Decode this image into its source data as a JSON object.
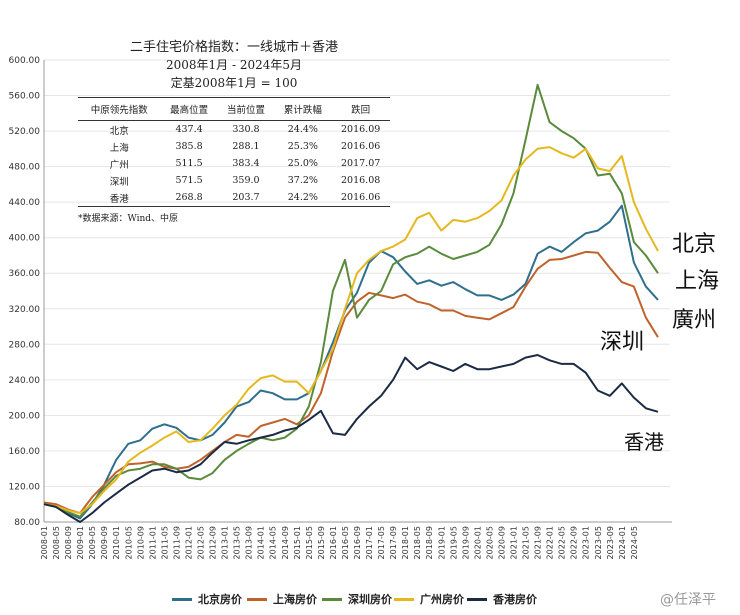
{
  "chart_data": {
    "type": "line",
    "ylim": [
      80,
      600
    ],
    "yticks": [
      "80.00",
      "120.00",
      "160.00",
      "200.00",
      "240.00",
      "280.00",
      "320.00",
      "360.00",
      "400.00",
      "440.00",
      "480.00",
      "520.00",
      "560.00",
      "600.00"
    ],
    "xticks": [
      "2008-01",
      "2008-05",
      "2008-09",
      "2009-01",
      "2009-05",
      "2009-09",
      "2010-01",
      "2010-05",
      "2010-09",
      "2011-01",
      "2011-05",
      "2011-09",
      "2012-01",
      "2012-05",
      "2012-09",
      "2013-01",
      "2013-05",
      "2013-09",
      "2014-01",
      "2014-05",
      "2014-09",
      "2015-01",
      "2015-05",
      "2015-09",
      "2016-01",
      "2016-05",
      "2016-09",
      "2017-01",
      "2017-05",
      "2017-09",
      "2018-01",
      "2018-05",
      "2018-09",
      "2019-01",
      "2019-05",
      "2019-09",
      "2020-01",
      "2020-05",
      "2020-09",
      "2021-01",
      "2021-05",
      "2021-09",
      "2022-01",
      "2022-05",
      "2022-09",
      "2023-01",
      "2023-05",
      "2023-09",
      "2024-01",
      "2024-05"
    ],
    "series": [
      {
        "name": "北京房价",
        "color": "#2e6f8e",
        "points": [
          [
            0,
            100
          ],
          [
            4,
            98
          ],
          [
            8,
            90
          ],
          [
            12,
            84
          ],
          [
            16,
            100
          ],
          [
            20,
            122
          ],
          [
            24,
            150
          ],
          [
            28,
            168
          ],
          [
            32,
            172
          ],
          [
            36,
            185
          ],
          [
            40,
            190
          ],
          [
            44,
            186
          ],
          [
            48,
            175
          ],
          [
            52,
            172
          ],
          [
            56,
            178
          ],
          [
            60,
            192
          ],
          [
            64,
            210
          ],
          [
            68,
            215
          ],
          [
            72,
            228
          ],
          [
            76,
            225
          ],
          [
            80,
            218
          ],
          [
            84,
            218
          ],
          [
            88,
            225
          ],
          [
            92,
            250
          ],
          [
            96,
            282
          ],
          [
            100,
            318
          ],
          [
            104,
            338
          ],
          [
            108,
            372
          ],
          [
            112,
            385
          ],
          [
            116,
            378
          ],
          [
            120,
            362
          ],
          [
            124,
            348
          ],
          [
            128,
            352
          ],
          [
            132,
            346
          ],
          [
            136,
            350
          ],
          [
            140,
            342
          ],
          [
            144,
            335
          ],
          [
            148,
            335
          ],
          [
            152,
            330
          ],
          [
            156,
            336
          ],
          [
            160,
            348
          ],
          [
            164,
            382
          ],
          [
            168,
            390
          ],
          [
            172,
            384
          ],
          [
            176,
            395
          ],
          [
            180,
            405
          ],
          [
            184,
            408
          ],
          [
            188,
            418
          ],
          [
            192,
            436
          ],
          [
            196,
            372
          ],
          [
            200,
            345
          ],
          [
            204,
            330
          ]
        ]
      },
      {
        "name": "上海房价",
        "color": "#c0622b",
        "points": [
          [
            0,
            102
          ],
          [
            4,
            100
          ],
          [
            8,
            94
          ],
          [
            12,
            90
          ],
          [
            16,
            108
          ],
          [
            20,
            122
          ],
          [
            24,
            136
          ],
          [
            28,
            145
          ],
          [
            32,
            146
          ],
          [
            36,
            148
          ],
          [
            40,
            142
          ],
          [
            44,
            140
          ],
          [
            48,
            142
          ],
          [
            52,
            150
          ],
          [
            56,
            160
          ],
          [
            60,
            170
          ],
          [
            64,
            178
          ],
          [
            68,
            176
          ],
          [
            72,
            188
          ],
          [
            76,
            192
          ],
          [
            80,
            196
          ],
          [
            84,
            190
          ],
          [
            88,
            200
          ],
          [
            92,
            225
          ],
          [
            96,
            272
          ],
          [
            100,
            310
          ],
          [
            104,
            328
          ],
          [
            108,
            338
          ],
          [
            112,
            335
          ],
          [
            116,
            332
          ],
          [
            120,
            336
          ],
          [
            124,
            328
          ],
          [
            128,
            325
          ],
          [
            132,
            318
          ],
          [
            136,
            318
          ],
          [
            140,
            312
          ],
          [
            144,
            310
          ],
          [
            148,
            308
          ],
          [
            152,
            315
          ],
          [
            156,
            322
          ],
          [
            160,
            345
          ],
          [
            164,
            365
          ],
          [
            168,
            375
          ],
          [
            172,
            376
          ],
          [
            176,
            380
          ],
          [
            180,
            384
          ],
          [
            184,
            383
          ],
          [
            188,
            366
          ],
          [
            192,
            350
          ],
          [
            196,
            345
          ],
          [
            200,
            310
          ],
          [
            204,
            288
          ]
        ]
      },
      {
        "name": "深圳房价",
        "color": "#5a8a3c",
        "points": [
          [
            0,
            100
          ],
          [
            4,
            97
          ],
          [
            8,
            91
          ],
          [
            12,
            86
          ],
          [
            16,
            102
          ],
          [
            20,
            118
          ],
          [
            24,
            132
          ],
          [
            28,
            138
          ],
          [
            32,
            140
          ],
          [
            36,
            145
          ],
          [
            40,
            145
          ],
          [
            44,
            140
          ],
          [
            48,
            130
          ],
          [
            52,
            128
          ],
          [
            56,
            135
          ],
          [
            60,
            150
          ],
          [
            64,
            160
          ],
          [
            68,
            168
          ],
          [
            72,
            175
          ],
          [
            76,
            172
          ],
          [
            80,
            175
          ],
          [
            84,
            185
          ],
          [
            88,
            210
          ],
          [
            92,
            260
          ],
          [
            96,
            340
          ],
          [
            100,
            375
          ],
          [
            104,
            310
          ],
          [
            108,
            330
          ],
          [
            112,
            340
          ],
          [
            116,
            370
          ],
          [
            120,
            378
          ],
          [
            124,
            382
          ],
          [
            128,
            390
          ],
          [
            132,
            382
          ],
          [
            136,
            376
          ],
          [
            140,
            380
          ],
          [
            144,
            384
          ],
          [
            148,
            392
          ],
          [
            152,
            415
          ],
          [
            156,
            450
          ],
          [
            160,
            510
          ],
          [
            164,
            572
          ],
          [
            168,
            530
          ],
          [
            172,
            520
          ],
          [
            176,
            512
          ],
          [
            180,
            500
          ],
          [
            184,
            470
          ],
          [
            188,
            472
          ],
          [
            192,
            450
          ],
          [
            196,
            395
          ],
          [
            200,
            380
          ],
          [
            204,
            360
          ]
        ]
      },
      {
        "name": "广州房价",
        "color": "#e6b820",
        "points": [
          [
            0,
            100
          ],
          [
            4,
            98
          ],
          [
            8,
            93
          ],
          [
            12,
            90
          ],
          [
            16,
            100
          ],
          [
            20,
            115
          ],
          [
            24,
            128
          ],
          [
            28,
            148
          ],
          [
            32,
            158
          ],
          [
            36,
            166
          ],
          [
            40,
            175
          ],
          [
            44,
            182
          ],
          [
            48,
            170
          ],
          [
            52,
            172
          ],
          [
            56,
            185
          ],
          [
            60,
            200
          ],
          [
            64,
            212
          ],
          [
            68,
            230
          ],
          [
            72,
            242
          ],
          [
            76,
            245
          ],
          [
            80,
            238
          ],
          [
            84,
            238
          ],
          [
            88,
            225
          ],
          [
            92,
            250
          ],
          [
            96,
            275
          ],
          [
            100,
            320
          ],
          [
            104,
            360
          ],
          [
            108,
            375
          ],
          [
            112,
            385
          ],
          [
            116,
            390
          ],
          [
            120,
            398
          ],
          [
            124,
            422
          ],
          [
            128,
            428
          ],
          [
            132,
            408
          ],
          [
            136,
            420
          ],
          [
            140,
            418
          ],
          [
            144,
            422
          ],
          [
            148,
            430
          ],
          [
            152,
            442
          ],
          [
            156,
            470
          ],
          [
            160,
            488
          ],
          [
            164,
            500
          ],
          [
            168,
            502
          ],
          [
            172,
            495
          ],
          [
            176,
            490
          ],
          [
            180,
            500
          ],
          [
            184,
            478
          ],
          [
            188,
            475
          ],
          [
            192,
            492
          ],
          [
            196,
            440
          ],
          [
            200,
            410
          ],
          [
            204,
            385
          ]
        ]
      },
      {
        "name": "香港房价",
        "color": "#1c2a44",
        "points": [
          [
            0,
            100
          ],
          [
            4,
            97
          ],
          [
            8,
            88
          ],
          [
            12,
            80
          ],
          [
            16,
            90
          ],
          [
            20,
            102
          ],
          [
            24,
            112
          ],
          [
            28,
            122
          ],
          [
            32,
            130
          ],
          [
            36,
            138
          ],
          [
            40,
            140
          ],
          [
            44,
            136
          ],
          [
            48,
            138
          ],
          [
            52,
            145
          ],
          [
            56,
            158
          ],
          [
            60,
            170
          ],
          [
            64,
            168
          ],
          [
            68,
            172
          ],
          [
            72,
            175
          ],
          [
            76,
            178
          ],
          [
            80,
            183
          ],
          [
            84,
            186
          ],
          [
            88,
            195
          ],
          [
            92,
            205
          ],
          [
            96,
            180
          ],
          [
            100,
            178
          ],
          [
            104,
            196
          ],
          [
            108,
            210
          ],
          [
            112,
            222
          ],
          [
            116,
            240
          ],
          [
            120,
            265
          ],
          [
            124,
            252
          ],
          [
            128,
            260
          ],
          [
            132,
            255
          ],
          [
            136,
            250
          ],
          [
            140,
            258
          ],
          [
            144,
            252
          ],
          [
            148,
            252
          ],
          [
            152,
            255
          ],
          [
            156,
            258
          ],
          [
            160,
            265
          ],
          [
            164,
            268
          ],
          [
            168,
            262
          ],
          [
            172,
            258
          ],
          [
            176,
            258
          ],
          [
            180,
            248
          ],
          [
            184,
            228
          ],
          [
            188,
            222
          ],
          [
            192,
            236
          ],
          [
            196,
            220
          ],
          [
            200,
            208
          ],
          [
            204,
            204
          ]
        ]
      }
    ]
  },
  "inset": {
    "title": "二手住宅价格指数：一线城市＋香港",
    "period": "2008年1月 - 2024年5月",
    "base": "定基2008年1月 = 100",
    "headers": [
      "中原领先指数",
      "最高位置",
      "当前位置",
      "累计跌幅",
      "跌回"
    ],
    "rows": [
      [
        "北京",
        "437.4",
        "330.8",
        "24.4%",
        "2016.09"
      ],
      [
        "上海",
        "385.8",
        "288.1",
        "25.3%",
        "2016.06"
      ],
      [
        "广州",
        "511.5",
        "383.4",
        "25.0%",
        "2017.07"
      ],
      [
        "深圳",
        "571.5",
        "359.0",
        "37.2%",
        "2016.08"
      ],
      [
        "香港",
        "268.8",
        "203.7",
        "24.2%",
        "2016.06"
      ]
    ],
    "note": "*数据来源：Wind、中原"
  },
  "city_labels": {
    "beijing": "北京",
    "shanghai": "上海",
    "guangzhou": "廣州",
    "shenzhen": "深圳",
    "hongkong": "香港"
  },
  "legend": [
    "北京房价",
    "上海房价",
    "深圳房价",
    "广州房价",
    "香港房价"
  ],
  "watermark": "@任泽平"
}
